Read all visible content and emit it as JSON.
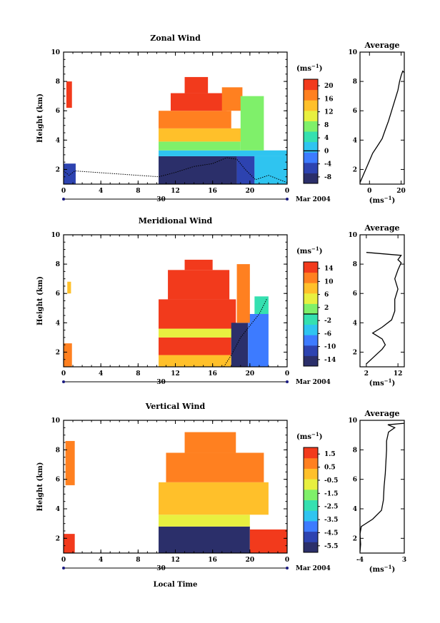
{
  "x_axis_label": "Local Time",
  "y_axis_label": "Height (km)",
  "date_label": "Mar 2004",
  "day_label": "30",
  "unit_label": "(ms",
  "unit_exp": "−1",
  "unit_close": ")",
  "chart_data": [
    {
      "type": "heatmap",
      "title": "Zonal Wind",
      "xlabel": "Local Time",
      "ylabel": "Height (km)",
      "x_ticks": [
        "0",
        "4",
        "8",
        "12",
        "16",
        "20",
        "0"
      ],
      "y_ticks": [
        "2",
        "4",
        "6",
        "8",
        "10"
      ],
      "xlim": [
        0,
        24
      ],
      "ylim": [
        1,
        10
      ],
      "colorbar": {
        "label": "(ms−1)",
        "ticks": [
          "20",
          "16",
          "12",
          "8",
          "4",
          "0",
          "-4",
          "-8"
        ],
        "range": [
          -10,
          22
        ]
      },
      "palette": [
        "#2b2f6a",
        "#2d43b0",
        "#3d7bff",
        "#2fc4f0",
        "#35e0b0",
        "#7ff06a",
        "#e8f040",
        "#ffc02a",
        "#ff8020",
        "#f23a1c"
      ],
      "field": [
        {
          "t0": 0.0,
          "t1": 1.3,
          "z0": 1.0,
          "z1": 2.4,
          "v": -6
        },
        {
          "t0": 0.3,
          "t1": 0.9,
          "z0": 6.2,
          "z1": 8.0,
          "v": 21
        },
        {
          "t0": 10.2,
          "t1": 18.6,
          "z0": 1.0,
          "z1": 2.9,
          "v": -9
        },
        {
          "t0": 10.2,
          "t1": 24.0,
          "z0": 2.9,
          "z1": 3.3,
          "v": 2
        },
        {
          "t0": 10.2,
          "t1": 19.0,
          "z0": 3.3,
          "z1": 3.9,
          "v": 8
        },
        {
          "t0": 10.2,
          "t1": 19.5,
          "z0": 3.9,
          "z1": 4.8,
          "v": 13
        },
        {
          "t0": 10.2,
          "t1": 18.0,
          "z0": 4.8,
          "z1": 6.0,
          "v": 17
        },
        {
          "t0": 11.5,
          "t1": 17.5,
          "z0": 6.0,
          "z1": 7.2,
          "v": 20
        },
        {
          "t0": 13.0,
          "t1": 15.5,
          "z0": 7.2,
          "z1": 8.3,
          "v": 21
        },
        {
          "t0": 17.0,
          "t1": 19.2,
          "z0": 6.0,
          "z1": 7.6,
          "v": 16
        },
        {
          "t0": 18.6,
          "t1": 20.5,
          "z0": 1.0,
          "z1": 2.9,
          "v": -4
        },
        {
          "t0": 20.5,
          "t1": 24.0,
          "z0": 1.0,
          "z1": 2.9,
          "v": 0
        },
        {
          "t0": 19.0,
          "t1": 21.5,
          "z0": 3.3,
          "z1": 7.0,
          "v": 6
        }
      ],
      "zero_contour": [
        [
          0.0,
          1.9
        ],
        [
          0.6,
          1.6
        ],
        [
          1.2,
          1.9
        ],
        [
          10.2,
          1.5
        ],
        [
          12,
          1.8
        ],
        [
          14,
          2.2
        ],
        [
          16,
          2.4
        ],
        [
          17.5,
          2.8
        ],
        [
          18.6,
          2.7
        ],
        [
          19.5,
          2.0
        ],
        [
          20.6,
          1.3
        ],
        [
          22,
          1.6
        ],
        [
          24,
          1.1
        ]
      ],
      "average_profile": {
        "title": "Average",
        "xlabel": "(ms−1)",
        "x_ticks": [
          "0",
          "20"
        ],
        "xlim": [
          -6,
          22
        ],
        "y_ticks": [
          "2",
          "4",
          "6",
          "8",
          "10"
        ],
        "ylim": [
          1,
          10
        ],
        "points": [
          [
            -6,
            1.1
          ],
          [
            -4,
            1.6
          ],
          [
            -2,
            2.1
          ],
          [
            0,
            2.6
          ],
          [
            2,
            3.1
          ],
          [
            5,
            3.6
          ],
          [
            8,
            4.1
          ],
          [
            10,
            4.7
          ],
          [
            12,
            5.3
          ],
          [
            14,
            6.0
          ],
          [
            16,
            6.7
          ],
          [
            18,
            7.4
          ],
          [
            19,
            8.0
          ],
          [
            20,
            8.4
          ],
          [
            21,
            8.7
          ],
          [
            22,
            8.6
          ]
        ]
      }
    },
    {
      "type": "heatmap",
      "title": "Meridional Wind",
      "xlabel": "Local Time",
      "ylabel": "Height (km)",
      "x_ticks": [
        "0",
        "4",
        "8",
        "12",
        "16",
        "20",
        "0"
      ],
      "y_ticks": [
        "2",
        "4",
        "6",
        "8",
        "10"
      ],
      "xlim": [
        0,
        24
      ],
      "ylim": [
        1,
        10
      ],
      "colorbar": {
        "label": "(ms−1)",
        "ticks": [
          "14",
          "10",
          "6",
          "2",
          "-2",
          "-6",
          "-10",
          "-14"
        ],
        "range": [
          -16,
          16
        ]
      },
      "palette": [
        "#2b2f6a",
        "#2d43b0",
        "#3d7bff",
        "#2fc4f0",
        "#35e0b0",
        "#7ff06a",
        "#e8f040",
        "#ffc02a",
        "#ff8020",
        "#f23a1c"
      ],
      "field": [
        {
          "t0": 0.0,
          "t1": 0.9,
          "z0": 1.0,
          "z1": 2.6,
          "v": 10
        },
        {
          "t0": 0.4,
          "t1": 0.8,
          "z0": 6.0,
          "z1": 6.8,
          "v": 9
        },
        {
          "t0": 10.2,
          "t1": 18.0,
          "z0": 1.0,
          "z1": 1.8,
          "v": 9
        },
        {
          "t0": 10.2,
          "t1": 18.0,
          "z0": 1.8,
          "z1": 3.0,
          "v": 15
        },
        {
          "t0": 10.2,
          "t1": 19.0,
          "z0": 3.0,
          "z1": 3.6,
          "v": 5
        },
        {
          "t0": 10.2,
          "t1": 18.5,
          "z0": 3.6,
          "z1": 5.6,
          "v": 15
        },
        {
          "t0": 11.2,
          "t1": 17.8,
          "z0": 5.6,
          "z1": 7.6,
          "v": 15
        },
        {
          "t0": 13.0,
          "t1": 16.0,
          "z0": 7.6,
          "z1": 8.3,
          "v": 15
        },
        {
          "t0": 18.0,
          "t1": 19.8,
          "z0": 1.0,
          "z1": 4.0,
          "v": -13
        },
        {
          "t0": 19.8,
          "t1": 22.0,
          "z0": 1.0,
          "z1": 4.6,
          "v": -8
        },
        {
          "t0": 20.5,
          "t1": 22.0,
          "z0": 4.6,
          "z1": 5.8,
          "v": -2
        },
        {
          "t0": 18.6,
          "t1": 20.0,
          "z0": 4.0,
          "z1": 8.0,
          "v": 12
        }
      ],
      "zero_contour": [
        [
          17.2,
          1.0
        ],
        [
          18.0,
          1.8
        ],
        [
          19.0,
          3.0
        ],
        [
          20.0,
          3.8
        ],
        [
          21.0,
          4.6
        ],
        [
          21.8,
          5.6
        ]
      ],
      "average_profile": {
        "title": "Average",
        "xlabel": "(ms−1)",
        "x_ticks": [
          "2",
          "12"
        ],
        "xlim": [
          0,
          14
        ],
        "y_ticks": [
          "2",
          "4",
          "6",
          "8",
          "10"
        ],
        "ylim": [
          1,
          10
        ],
        "points": [
          [
            2,
            1.2
          ],
          [
            4,
            1.6
          ],
          [
            7,
            2.2
          ],
          [
            8,
            2.5
          ],
          [
            7,
            2.9
          ],
          [
            4,
            3.3
          ],
          [
            7,
            3.7
          ],
          [
            10,
            4.2
          ],
          [
            11,
            4.8
          ],
          [
            11,
            5.6
          ],
          [
            12,
            6.3
          ],
          [
            11,
            7.0
          ],
          [
            12,
            7.6
          ],
          [
            13,
            8.1
          ],
          [
            12,
            8.3
          ],
          [
            13,
            8.6
          ],
          [
            2,
            8.8
          ]
        ]
      }
    },
    {
      "type": "heatmap",
      "title": "Vertical Wind",
      "xlabel": "Local Time",
      "ylabel": "Height (km)",
      "x_ticks": [
        "0",
        "4",
        "8",
        "12",
        "16",
        "20",
        "0"
      ],
      "y_ticks": [
        "2",
        "4",
        "6",
        "8",
        "10"
      ],
      "xlim": [
        0,
        24
      ],
      "ylim": [
        1,
        10
      ],
      "colorbar": {
        "label": "(ms−1)",
        "ticks": [
          "1.5",
          "0.5",
          "-0.5",
          "-1.5",
          "-2.5",
          "-3.5",
          "-4.5",
          "-5.5"
        ],
        "range": [
          -6,
          2
        ]
      },
      "palette": [
        "#2b2f6a",
        "#2d43b0",
        "#3d7bff",
        "#2fc4f0",
        "#35e0b0",
        "#7ff06a",
        "#e8f040",
        "#ffc02a",
        "#ff8020",
        "#f23a1c"
      ],
      "field": [
        {
          "t0": 0.0,
          "t1": 1.2,
          "z0": 1.0,
          "z1": 2.3,
          "v": 1.2
        },
        {
          "t0": 0.2,
          "t1": 1.2,
          "z0": 5.6,
          "z1": 8.6,
          "v": 0.9
        },
        {
          "t0": 10.2,
          "t1": 20.0,
          "z0": 1.0,
          "z1": 2.8,
          "v": -5.8
        },
        {
          "t0": 10.2,
          "t1": 20.0,
          "z0": 2.8,
          "z1": 3.6,
          "v": -1.0
        },
        {
          "t0": 10.2,
          "t1": 22.0,
          "z0": 3.6,
          "z1": 5.8,
          "v": -0.3
        },
        {
          "t0": 11.0,
          "t1": 21.5,
          "z0": 5.8,
          "z1": 7.8,
          "v": 0.6
        },
        {
          "t0": 13.0,
          "t1": 18.5,
          "z0": 7.8,
          "z1": 9.2,
          "v": 0.9
        },
        {
          "t0": 20.0,
          "t1": 24.0,
          "z0": 1.0,
          "z1": 2.6,
          "v": 1.4
        }
      ],
      "zero_contour": [],
      "average_profile": {
        "title": "Average",
        "xlabel": "(ms−1)",
        "x_ticks": [
          "-4",
          "3"
        ],
        "xlim": [
          -4,
          3
        ],
        "y_ticks": [
          "2",
          "4",
          "6",
          "8",
          "10"
        ],
        "ylim": [
          1,
          10
        ],
        "points": [
          [
            -4,
            1.1
          ],
          [
            -3.9,
            1.6
          ],
          [
            -4,
            2.3
          ],
          [
            -3.8,
            2.8
          ],
          [
            -2,
            3.3
          ],
          [
            -0.6,
            3.9
          ],
          [
            -0.3,
            4.6
          ],
          [
            -0.2,
            5.5
          ],
          [
            0,
            6.4
          ],
          [
            0.1,
            7.2
          ],
          [
            0.2,
            8.0
          ],
          [
            0.2,
            8.6
          ],
          [
            0.5,
            9.2
          ],
          [
            1.5,
            9.5
          ],
          [
            0.4,
            9.7
          ],
          [
            3,
            9.8
          ]
        ]
      }
    }
  ]
}
